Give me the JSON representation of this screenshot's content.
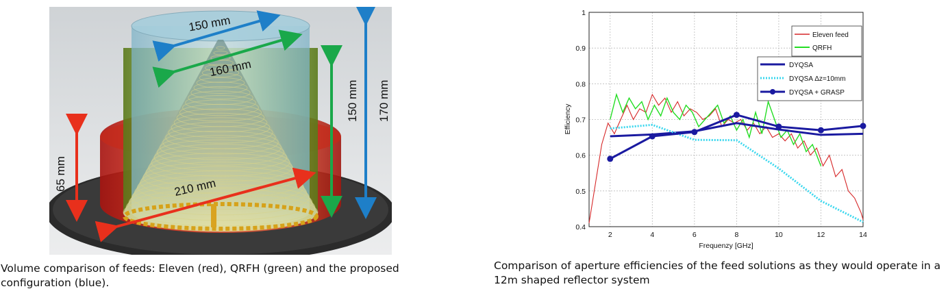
{
  "left_figure": {
    "dims": {
      "top_diameter": "150 mm",
      "mid_diameter": "160 mm",
      "base_diameter": "210 mm",
      "height_red": "65 mm",
      "height_green": "150 mm",
      "height_blue": "170 mm"
    },
    "colors": {
      "red": "#e8301c",
      "green": "#1aa84a",
      "blue": "#1e7fc8"
    }
  },
  "chart_data": {
    "type": "line",
    "xlabel": "Frequenzy [GHz]",
    "ylabel": "Efficiency",
    "xlim": [
      1,
      14
    ],
    "ylim": [
      0.4,
      1.0
    ],
    "xticks": [
      "2",
      "4",
      "6",
      "8",
      "10",
      "12",
      "14"
    ],
    "yticks": [
      "0.4",
      "0.5",
      "0.6",
      "0.7",
      "0.8",
      "0.9",
      "1"
    ],
    "grid": true,
    "legend_top": {
      "placement": "top-right",
      "entries": [
        "Eleven feed",
        "QRFH"
      ]
    },
    "legend_bottom": {
      "placement": "right",
      "entries": [
        "DYQSA",
        "DYQSA Δz=10mm",
        "DYQSA + GRASP"
      ]
    },
    "series": [
      {
        "name": "Eleven feed",
        "color": "#d62728",
        "x": [
          1.0,
          1.3,
          1.6,
          1.9,
          2.2,
          2.5,
          2.8,
          3.1,
          3.4,
          3.7,
          4.0,
          4.3,
          4.6,
          4.9,
          5.2,
          5.5,
          5.8,
          6.1,
          6.4,
          6.7,
          7.0,
          7.3,
          7.6,
          7.9,
          8.2,
          8.5,
          8.8,
          9.1,
          9.4,
          9.7,
          10.0,
          10.3,
          10.6,
          10.9,
          11.2,
          11.5,
          11.8,
          12.1,
          12.4,
          12.7,
          13.0,
          13.3,
          13.6,
          13.9,
          14.0
        ],
        "y": [
          0.41,
          0.52,
          0.63,
          0.69,
          0.66,
          0.7,
          0.74,
          0.7,
          0.73,
          0.72,
          0.77,
          0.74,
          0.76,
          0.72,
          0.75,
          0.71,
          0.73,
          0.72,
          0.7,
          0.71,
          0.73,
          0.68,
          0.7,
          0.69,
          0.7,
          0.67,
          0.69,
          0.66,
          0.68,
          0.65,
          0.66,
          0.64,
          0.66,
          0.62,
          0.64,
          0.6,
          0.62,
          0.57,
          0.6,
          0.54,
          0.56,
          0.5,
          0.48,
          0.44,
          0.42
        ]
      },
      {
        "name": "QRFH",
        "color": "#22dd22",
        "x": [
          2.0,
          2.3,
          2.6,
          2.9,
          3.2,
          3.5,
          3.8,
          4.1,
          4.4,
          4.7,
          5.0,
          5.3,
          5.6,
          5.9,
          6.2,
          6.5,
          6.8,
          7.1,
          7.4,
          7.7,
          8.0,
          8.3,
          8.6,
          8.9,
          9.2,
          9.5,
          9.8,
          10.1,
          10.4,
          10.7,
          11.0,
          11.3,
          11.6,
          12.0
        ],
        "y": [
          0.7,
          0.77,
          0.72,
          0.76,
          0.73,
          0.75,
          0.7,
          0.74,
          0.71,
          0.76,
          0.72,
          0.7,
          0.74,
          0.72,
          0.68,
          0.7,
          0.72,
          0.74,
          0.69,
          0.71,
          0.67,
          0.7,
          0.65,
          0.72,
          0.66,
          0.75,
          0.7,
          0.65,
          0.67,
          0.63,
          0.66,
          0.61,
          0.63,
          0.57
        ]
      },
      {
        "name": "DYQSA",
        "color": "#1a1aa0",
        "x": [
          2,
          4,
          6,
          8,
          10,
          12,
          14
        ],
        "y": [
          0.653,
          0.658,
          0.667,
          0.69,
          0.672,
          0.657,
          0.66
        ]
      },
      {
        "name": "DYQSA Δz=10mm",
        "color": "#3ad7ee",
        "x": [
          2,
          4,
          6,
          8,
          10,
          12,
          14
        ],
        "y": [
          0.675,
          0.685,
          0.643,
          0.642,
          0.563,
          0.472,
          0.413
        ]
      },
      {
        "name": "DYQSA + GRASP",
        "color": "#1a1aa0",
        "x": [
          2,
          4,
          6,
          8,
          10,
          12,
          14
        ],
        "y": [
          0.59,
          0.653,
          0.665,
          0.713,
          0.68,
          0.67,
          0.682
        ]
      }
    ]
  },
  "captions": {
    "left": "Volume comparison of feeds: Eleven (red), QRFH (green) and the proposed configuration (blue).",
    "right": "Comparison of aperture efficiencies of the feed solutions as they would operate in a 12m shaped reflector system"
  }
}
